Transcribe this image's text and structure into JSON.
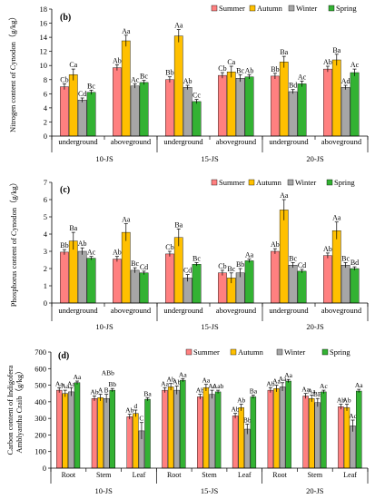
{
  "legend_labels": [
    "Summer",
    "Autumn",
    "Winter",
    "Spring"
  ],
  "colors": [
    "#FF8080",
    "#FFC000",
    "#A6A6A6",
    "#33B233"
  ],
  "chart_data": [
    {
      "type": "bar",
      "panel_label": "(b)",
      "ylabel": "Nitrogen content of Cynodon（g/kg）",
      "ylim": [
        0,
        18
      ],
      "yticks": [
        0,
        2,
        4,
        6,
        8,
        10,
        12,
        14,
        16,
        18
      ],
      "categories": [
        "underground",
        "aboveground",
        "underground",
        "aboveground",
        "underground",
        "aboveground"
      ],
      "groups": [
        "10-JS",
        "15-JS",
        "20-JS"
      ],
      "legend_position": "top-right",
      "grid": false,
      "series": [
        {
          "name": "Summer",
          "values": [
            7.0,
            9.7,
            8.0,
            8.6,
            8.5,
            9.5
          ],
          "errors": [
            0.4,
            0.4,
            0.4,
            0.4,
            0.4,
            0.4
          ],
          "letters": [
            "Cb",
            "Ab",
            "Bb",
            "Cb",
            "Bb",
            "Ab"
          ]
        },
        {
          "name": "Autumn",
          "values": [
            8.7,
            13.5,
            14.2,
            9.1,
            10.5,
            10.8
          ],
          "errors": [
            0.8,
            0.8,
            0.9,
            0.8,
            0.8,
            0.8
          ],
          "letters": [
            "Ca",
            "Aa",
            "Aa",
            "Ca",
            "Ba",
            "Ba"
          ]
        },
        {
          "name": "Winter",
          "values": [
            5.1,
            7.1,
            6.9,
            8.2,
            6.3,
            6.9
          ],
          "errors": [
            0.3,
            0.3,
            0.3,
            0.5,
            0.3,
            0.3
          ],
          "letters": [
            "Cd",
            "Ac",
            "Ab",
            "Bc",
            "Bd",
            "Ad"
          ]
        },
        {
          "name": "Spring",
          "values": [
            6.2,
            7.6,
            4.9,
            8.4,
            7.4,
            9.0
          ],
          "errors": [
            0.3,
            0.3,
            0.3,
            0.3,
            0.4,
            0.5
          ],
          "letters": [
            "Bc",
            "Bc",
            "Cc",
            "Ab",
            "Ac",
            "Ac"
          ]
        }
      ]
    },
    {
      "type": "bar",
      "panel_label": "(c)",
      "ylabel": "Phosphorus content of Cynodon（g/kg）",
      "ylim": [
        0,
        7
      ],
      "yticks": [
        0,
        1,
        2,
        3,
        4,
        5,
        6,
        7
      ],
      "categories": [
        "underground",
        "aboveground",
        "underground",
        "aboveground",
        "underground",
        "aboveground"
      ],
      "groups": [
        "10-JS",
        "15-JS",
        "20-JS"
      ],
      "legend_position": "top-right",
      "grid": false,
      "series": [
        {
          "name": "Summer",
          "values": [
            2.95,
            2.55,
            2.85,
            1.75,
            3.0,
            2.75
          ],
          "errors": [
            0.15,
            0.15,
            0.15,
            0.15,
            0.15,
            0.15
          ],
          "letters": [
            "Bb",
            "Ab",
            "Cb",
            "Cb",
            "Ab",
            "Ab"
          ]
        },
        {
          "name": "Autumn",
          "values": [
            3.6,
            4.1,
            3.8,
            1.45,
            5.4,
            4.2
          ],
          "errors": [
            0.5,
            0.5,
            0.5,
            0.3,
            0.6,
            0.5
          ],
          "letters": [
            "Ba",
            "Aa",
            "Ba",
            "Bc",
            "Aa",
            "Aa"
          ]
        },
        {
          "name": "Winter",
          "values": [
            3.0,
            1.9,
            1.45,
            1.75,
            2.2,
            2.2
          ],
          "errors": [
            0.2,
            0.15,
            0.2,
            0.25,
            0.15,
            0.15
          ],
          "letters": [
            "Ab",
            "Bc",
            "Cd",
            "Bb",
            "Bc",
            "Bc"
          ]
        },
        {
          "name": "Spring",
          "values": [
            2.6,
            1.75,
            2.25,
            2.45,
            1.85,
            2.0
          ],
          "errors": [
            0.1,
            0.1,
            0.1,
            0.1,
            0.1,
            0.1
          ],
          "letters": [
            "Ac",
            "Cd",
            "Bc",
            "Aa",
            "Cd",
            "Bd"
          ]
        }
      ]
    },
    {
      "type": "bar",
      "panel_label": "(d)",
      "ylabel": "Carbon content of Indigofera Amblyantha Craib（g/kg）",
      "ylim": [
        0,
        700
      ],
      "yticks": [
        0,
        100,
        200,
        300,
        400,
        500,
        600,
        700
      ],
      "categories": [
        "Root",
        "Stem",
        "Leaf",
        "Root",
        "Stem",
        "Leaf",
        "Root",
        "Stem",
        "Leaf"
      ],
      "groups": [
        "10-JS",
        "15-JS",
        "20-JS"
      ],
      "legend_position": "top-right",
      "grid": false,
      "series": [
        {
          "name": "Summer",
          "values": [
            470,
            420,
            310,
            470,
            430,
            315,
            470,
            435,
            370
          ],
          "errors": [
            15,
            15,
            15,
            15,
            15,
            15,
            15,
            15,
            15
          ],
          "letters": [
            "Aa",
            "Ab",
            "Ab",
            "Aa",
            "Ab",
            "Ab",
            "Ab",
            "Aa",
            "Ab"
          ]
        },
        {
          "name": "Autumn",
          "values": [
            450,
            425,
            330,
            490,
            485,
            365,
            480,
            420,
            365
          ],
          "errors": [
            20,
            20,
            20,
            20,
            20,
            20,
            20,
            20,
            20
          ],
          "letters": [
            "Aa",
            "A",
            "d",
            "Ab",
            "Aa",
            "Ab",
            "Aa",
            "Aa",
            "Ab"
          ]
        },
        {
          "name": "Winter",
          "values": [
            460,
            420,
            225,
            470,
            445,
            235,
            490,
            395,
            255
          ],
          "errors": [
            25,
            25,
            50,
            25,
            25,
            30,
            25,
            25,
            35
          ],
          "letters": [
            "Aa",
            "B",
            "C",
            "Ab",
            "Ac",
            "Bb",
            "Aa",
            "BB",
            "Ac"
          ]
        },
        {
          "name": "Spring",
          "values": [
            515,
            470,
            415,
            530,
            460,
            430,
            525,
            460,
            465
          ],
          "errors": [
            10,
            10,
            10,
            10,
            10,
            10,
            10,
            10,
            10
          ],
          "letters": [
            "Aa",
            "Bb",
            "Ba",
            "Aa",
            "Aab",
            "Ba",
            "Aa",
            "Ac",
            "Aa"
          ]
        }
      ],
      "extra_letters": [
        "ABb"
      ]
    }
  ]
}
